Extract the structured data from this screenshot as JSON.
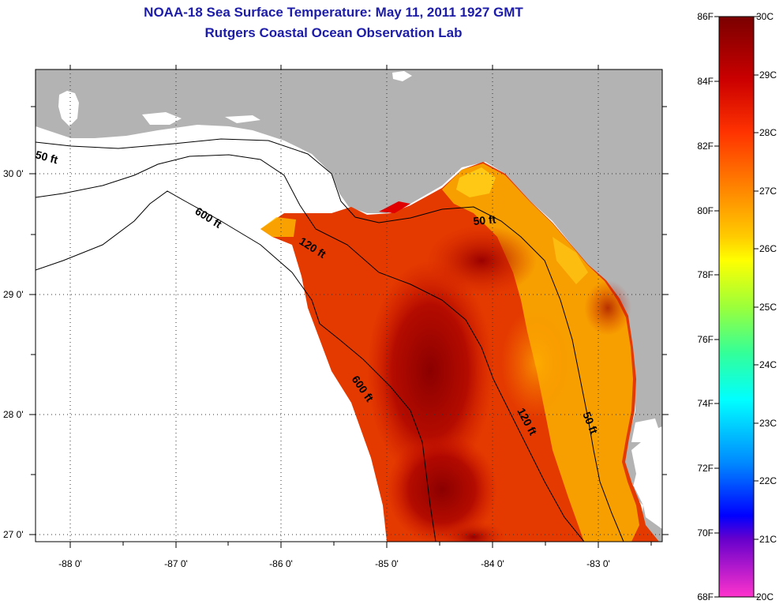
{
  "title": {
    "line1": "NOAA-18 Sea Surface Temperature:  May 11, 2011 1927 GMT",
    "line2": "Rutgers Coastal Ocean Observation Lab"
  },
  "map": {
    "longitude_labels": [
      "-88 0'",
      "-87 0'",
      "-86 0'",
      "-85 0'",
      "-84 0'",
      "-83 0'"
    ],
    "latitude_labels": [
      "30 0'",
      "29 0'",
      "28 0'",
      "27 0'"
    ],
    "contour_labels": [
      "50 ft",
      "600 ft",
      "120 ft",
      "50 ft",
      "600 ft",
      "120 ft",
      "50 ft"
    ],
    "colors": {
      "land": "#b3b3b3",
      "water_nodata": "#ffffff",
      "contour": "#000000"
    }
  },
  "colorbar": {
    "fahrenheit_labels": [
      "86F",
      "84F",
      "82F",
      "80F",
      "78F",
      "76F",
      "74F",
      "72F",
      "70F",
      "68F"
    ],
    "celsius_labels": [
      "30C",
      "29C",
      "28C",
      "27C",
      "26C",
      "25C",
      "24C",
      "23C",
      "22C",
      "21C",
      "20C"
    ],
    "stops": [
      "#7a0000",
      "#cc0000",
      "#ff3300",
      "#ff8800",
      "#ffcc00",
      "#ffff00",
      "#9cff3a",
      "#33ff99",
      "#00ffff",
      "#0088ff",
      "#0000ff",
      "#6600cc",
      "#ff33cc"
    ]
  }
}
